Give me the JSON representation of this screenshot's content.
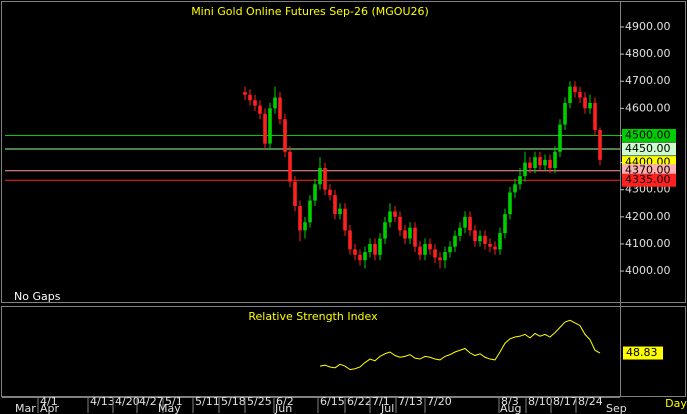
{
  "chart_data": [
    {
      "type": "candlestick",
      "title": "Mini Gold Online Futures Sep-26 (MGOU26)",
      "annotation": "No Gaps",
      "x_label": "Day",
      "up_color": "#00d000",
      "down_color": "#ff2020",
      "x": [
        48,
        49,
        50,
        51,
        52,
        53,
        54,
        55,
        56,
        57,
        58,
        59,
        60,
        61,
        62,
        63,
        64,
        65,
        66,
        67,
        68,
        69,
        70,
        71,
        72,
        73,
        74,
        75,
        76,
        77,
        78,
        79,
        80,
        81,
        82,
        83,
        84,
        85,
        86,
        87,
        88,
        89,
        90,
        91,
        92,
        93,
        94,
        95,
        96,
        97,
        98,
        99,
        100,
        101,
        102,
        103,
        104,
        105,
        106,
        107,
        108,
        109,
        110,
        111,
        112,
        113,
        114,
        115,
        116,
        117,
        118,
        119
      ],
      "open": [
        4660,
        4650,
        4630,
        4610,
        4580,
        4470,
        4600,
        4640,
        4560,
        4440,
        4330,
        4240,
        4150,
        4180,
        4260,
        4320,
        4380,
        4300,
        4280,
        4210,
        4230,
        4150,
        4080,
        4060,
        4040,
        4070,
        4100,
        4060,
        4120,
        4180,
        4220,
        4200,
        4150,
        4120,
        4160,
        4090,
        4060,
        4100,
        4080,
        4050,
        4040,
        4070,
        4090,
        4130,
        4160,
        4200,
        4150,
        4110,
        4130,
        4100,
        4090,
        4080,
        4140,
        4210,
        4290,
        4320,
        4350,
        4400,
        4380,
        4420,
        4390,
        4410,
        4380,
        4440,
        4540,
        4620,
        4680,
        4660,
        4640,
        4600,
        4620,
        4520
      ],
      "high": [
        4680,
        4670,
        4650,
        4630,
        4600,
        4620,
        4680,
        4660,
        4580,
        4460,
        4350,
        4260,
        4200,
        4280,
        4340,
        4420,
        4400,
        4320,
        4300,
        4250,
        4250,
        4170,
        4100,
        4080,
        4090,
        4120,
        4120,
        4140,
        4200,
        4250,
        4240,
        4220,
        4170,
        4180,
        4180,
        4110,
        4120,
        4120,
        4100,
        4070,
        4090,
        4110,
        4150,
        4180,
        4220,
        4220,
        4170,
        4150,
        4150,
        4120,
        4110,
        4160,
        4230,
        4310,
        4340,
        4380,
        4440,
        4420,
        4440,
        4440,
        4430,
        4430,
        4460,
        4560,
        4640,
        4700,
        4700,
        4680,
        4660,
        4650,
        4640,
        4530
      ],
      "low": [
        4630,
        4610,
        4590,
        4560,
        4450,
        4450,
        4580,
        4540,
        4420,
        4310,
        4220,
        4110,
        4120,
        4160,
        4240,
        4300,
        4280,
        4260,
        4190,
        4190,
        4130,
        4060,
        4040,
        4020,
        4010,
        4050,
        4040,
        4040,
        4100,
        4160,
        4180,
        4130,
        4100,
        4100,
        4070,
        4040,
        4040,
        4060,
        4030,
        4010,
        4010,
        4050,
        4070,
        4110,
        4140,
        4130,
        4090,
        4090,
        4080,
        4070,
        4060,
        4060,
        4120,
        4190,
        4270,
        4300,
        4330,
        4360,
        4360,
        4370,
        4370,
        4360,
        4360,
        4420,
        4520,
        4600,
        4640,
        4620,
        4580,
        4580,
        4500,
        4390
      ],
      "close": [
        4650,
        4630,
        4610,
        4580,
        4470,
        4600,
        4640,
        4560,
        4440,
        4330,
        4240,
        4150,
        4180,
        4260,
        4320,
        4380,
        4300,
        4280,
        4210,
        4230,
        4150,
        4080,
        4060,
        4040,
        4070,
        4100,
        4060,
        4120,
        4180,
        4220,
        4200,
        4150,
        4120,
        4160,
        4090,
        4060,
        4100,
        4080,
        4050,
        4040,
        4070,
        4090,
        4130,
        4160,
        4200,
        4150,
        4110,
        4130,
        4100,
        4090,
        4080,
        4140,
        4210,
        4290,
        4320,
        4350,
        4400,
        4380,
        4420,
        4390,
        4410,
        4380,
        4440,
        4540,
        4620,
        4680,
        4660,
        4640,
        4600,
        4620,
        4520,
        4410
      ],
      "xlim": [
        0,
        123
      ],
      "ylim": [
        3886,
        4981
      ],
      "yticks": [
        {
          "value": 4000,
          "label": "4000.00"
        },
        {
          "value": 4100,
          "label": "4100.00"
        },
        {
          "value": 4200,
          "label": "4200.00"
        },
        {
          "value": 4300,
          "label": "4300.00"
        },
        {
          "value": 4400,
          "label": "4400.00"
        },
        {
          "value": 4500,
          "label": "4500.00"
        },
        {
          "value": 4600,
          "label": "4600.00"
        },
        {
          "value": 4700,
          "label": "4700.00"
        },
        {
          "value": 4800,
          "label": "4800.00"
        },
        {
          "value": 4900,
          "label": "4900.00"
        }
      ],
      "xticks": [
        {
          "value": 6.6,
          "label": "4/1"
        },
        {
          "value": 16.6,
          "label": "4/13"
        },
        {
          "value": 21.6,
          "label": "4/20"
        },
        {
          "value": 26.4,
          "label": "4/27"
        },
        {
          "value": 31.6,
          "label": "5/1"
        },
        {
          "value": 37.6,
          "label": "5/11"
        },
        {
          "value": 42.8,
          "label": "5/18"
        },
        {
          "value": 48,
          "label": "5/25"
        },
        {
          "value": 53.8,
          "label": "6/2"
        },
        {
          "value": 62.6,
          "label": "6/15"
        },
        {
          "value": 68,
          "label": "6/22"
        },
        {
          "value": 73,
          "label": "7/1"
        },
        {
          "value": 78.2,
          "label": "7/13"
        },
        {
          "value": 84,
          "label": "7/20"
        },
        {
          "value": 98.8,
          "label": "8/3"
        },
        {
          "value": 104.2,
          "label": "8/10"
        },
        {
          "value": 109.2,
          "label": "8/17"
        },
        {
          "value": 114.2,
          "label": "8/24"
        }
      ],
      "month_ticks": [
        {
          "value": 2,
          "label": "Mar"
        },
        {
          "value": 7,
          "label": "Apr"
        },
        {
          "value": 30.6,
          "label": "May"
        },
        {
          "value": 54,
          "label": "Jun"
        },
        {
          "value": 75.2,
          "label": "Jul"
        },
        {
          "value": 99,
          "label": "Aug"
        },
        {
          "value": 120.2,
          "label": "Sep"
        }
      ],
      "levels": [
        {
          "value": 4500,
          "label": "4500.00",
          "color": "#00cc00",
          "box": "#00cc00",
          "show_line": true
        },
        {
          "value": 4450,
          "label": "4450.00",
          "color": "#99ff99",
          "box": "#ccffcc",
          "show_line": true
        },
        {
          "value": 4400,
          "label": "4400.00",
          "color": "#ffff00",
          "box": "#ffff00",
          "show_line": false
        },
        {
          "value": 4370,
          "label": "4370.00",
          "color": "#ff9999",
          "box": "#ffb0b0",
          "show_line": true
        },
        {
          "value": 4335,
          "label": "4335.00",
          "color": "#ff2020",
          "box": "#ff2020",
          "show_line": true
        }
      ]
    },
    {
      "type": "line",
      "title": "Relative Strength Index",
      "xlim": [
        0,
        123
      ],
      "ylim": [
        0,
        100
      ],
      "series": [
        {
          "color": "#ffff00",
          "x": [
            63,
            64,
            65,
            66,
            67,
            68,
            69,
            70,
            71,
            72,
            73,
            74,
            75,
            76,
            77,
            78,
            79,
            80,
            81,
            82,
            83,
            84,
            85,
            86,
            87,
            88,
            89,
            90,
            91,
            92,
            93,
            94,
            95,
            96,
            97,
            98,
            99,
            100,
            101,
            102,
            103,
            104,
            105,
            106,
            107,
            108,
            109,
            110,
            111,
            112,
            113,
            114,
            115,
            116,
            117,
            118,
            119
          ],
          "values": [
            34,
            35,
            33,
            32,
            36,
            34,
            30,
            31,
            33,
            38,
            42,
            40,
            45,
            48,
            50,
            46,
            44,
            45,
            47,
            43,
            42,
            45,
            44,
            42,
            41,
            45,
            47,
            50,
            52,
            54,
            49,
            46,
            48,
            44,
            42,
            41,
            50,
            60,
            65,
            67,
            68,
            70,
            66,
            71,
            68,
            70,
            67,
            72,
            78,
            84,
            86,
            83,
            80,
            70,
            64,
            52,
            48.83
          ]
        }
      ]
    }
  ]
}
